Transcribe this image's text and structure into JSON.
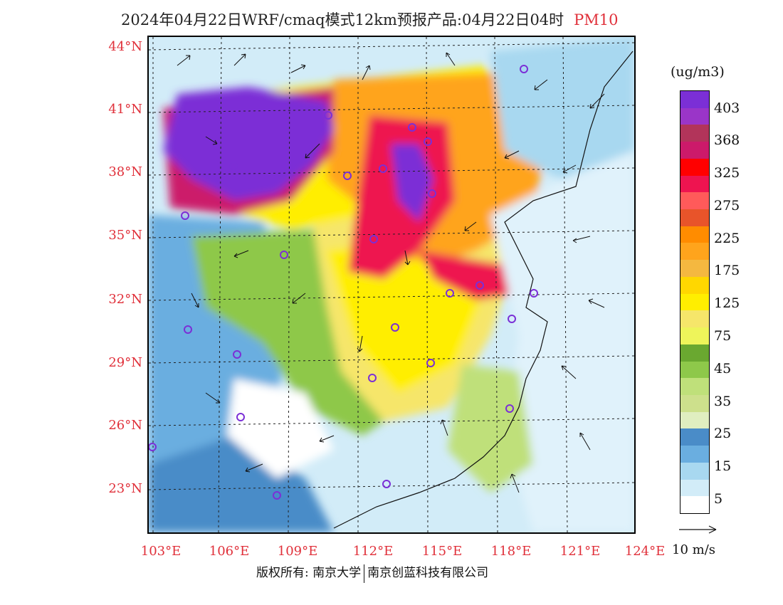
{
  "title": {
    "main": "2024年04月22日WRF/cmaq模式12km预报产品:04月22日04时",
    "pollutant": "PM10"
  },
  "lat_labels": [
    "44°N",
    "41°N",
    "38°N",
    "35°N",
    "32°N",
    "29°N",
    "26°N",
    "23°N"
  ],
  "lon_labels": [
    "103°E",
    "106°E",
    "109°E",
    "112°E",
    "115°E",
    "118°E",
    "121°E",
    "124°E"
  ],
  "colorbar": {
    "unit": "(ug/m3)",
    "labels": [
      "403",
      "368",
      "325",
      "275",
      "225",
      "175",
      "125",
      "75",
      "45",
      "35",
      "25",
      "15",
      "5"
    ],
    "colors": [
      "#7b2fd6",
      "#9a35c8",
      "#b2345a",
      "#cc1a6a",
      "#ff0000",
      "#ee1450",
      "#ff5a5a",
      "#e8542a",
      "#ff8c00",
      "#ffa41c",
      "#f4b840",
      "#ffd700",
      "#ffee00",
      "#f6e66a",
      "#eef45a",
      "#6aa830",
      "#8ec84a",
      "#bfe07a",
      "#cde08c",
      "#e0eec0",
      "#4a8cc8",
      "#6aaee0",
      "#a8d8f0",
      "#d2ecf8",
      "#ffffff"
    ]
  },
  "wind_reference": {
    "label": "10 m/s"
  },
  "footer": {
    "copyright": "版权所有: 南京大学",
    "company": "南京创蓝科技有限公司"
  }
}
